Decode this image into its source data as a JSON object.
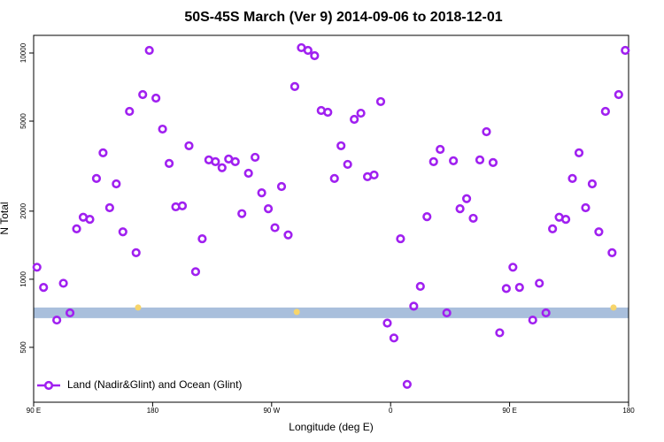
{
  "chart_data": {
    "type": "scatter",
    "title": "50S-45S March (Ver 9)   2014-09-06 to 2018-12-01",
    "x_label": "Longitude (deg E)",
    "y_label": "N Total",
    "log_y": true,
    "xlim": [
      90,
      540
    ],
    "ylim": [
      286,
      11970
    ],
    "xticks": [
      {
        "value": 90,
        "label": "90 E"
      },
      180,
      {
        "value": 270,
        "label": "90 W"
      },
      {
        "value": 360,
        "label": "0"
      },
      {
        "value": 450,
        "label": "90 E"
      },
      {
        "value": 540,
        "label": "180"
      }
    ],
    "yticks": [
      500,
      1000,
      2000,
      5000,
      10000
    ],
    "legend_position": "bottom-left",
    "shaded_band": {
      "ylim": [
        673,
        750
      ],
      "color": "#a9bfdc"
    },
    "highlight_points": {
      "color": "#f7d56b",
      "x": [
        169,
        289,
        528.6
      ],
      "values": [
        750,
        717,
        750
      ]
    },
    "series": [
      {
        "name": "Land (Nadir&Glint) and Ocean (Glint)",
        "color": "#a020f0",
        "x": [
          92.5,
          97.5,
          107.5,
          112.5,
          117.5,
          122.5,
          127.5,
          132.5,
          137.5,
          142.5,
          147.5,
          152.5,
          157.5,
          162.5,
          167.5,
          172.5,
          177.5,
          182.5,
          187.5,
          192.5,
          197.5,
          202.5,
          207.5,
          212.5,
          217.5,
          222.5,
          227.5,
          232.5,
          237.5,
          242.5,
          247.5,
          252.5,
          257.5,
          262.5,
          267.5,
          272.5,
          277.5,
          282.5,
          287.5,
          292.5,
          297.5,
          302.5,
          307.5,
          312.5,
          317.5,
          322.5,
          327.5,
          332.5,
          337.5,
          342.5,
          347.5,
          352.5,
          357.5,
          362.5,
          367.5,
          372.5,
          377.5,
          382.5,
          387.5,
          392.5,
          397.5,
          402.5,
          407.5,
          412.5,
          417.5,
          422.5,
          427.5,
          432.5,
          437.5,
          442.5,
          447.5,
          452.5,
          457.5,
          467.5,
          472.5,
          477.5,
          482.5,
          487.5,
          492.5,
          497.5,
          502.5,
          507.5,
          512.5,
          517.5,
          522.5,
          527.5,
          532.5,
          537.5
        ],
        "values": [
          1130,
          920,
          660,
          960,
          710,
          1670,
          1880,
          1840,
          2790,
          3620,
          2070,
          2640,
          1620,
          5520,
          1310,
          6550,
          10270,
          6320,
          4610,
          3250,
          2090,
          2110,
          3890,
          1080,
          1510,
          3370,
          3310,
          3110,
          3400,
          3310,
          1950,
          2940,
          3460,
          2410,
          2050,
          1690,
          2570,
          1570,
          7110,
          10560,
          10270,
          9730,
          5570,
          5470,
          2790,
          3890,
          3220,
          5090,
          5420,
          2840,
          2890,
          6100,
          640,
          550,
          1510,
          343,
          760,
          930,
          1890,
          3310,
          3750,
          710,
          3340,
          2050,
          2270,
          1860,
          3370,
          4490,
          3280,
          580,
          910,
          1130,
          920,
          660,
          960,
          710,
          1670,
          1880,
          1840,
          2790,
          3620,
          2070,
          2640,
          1620,
          5520,
          1310,
          6550,
          10270
        ]
      }
    ]
  }
}
